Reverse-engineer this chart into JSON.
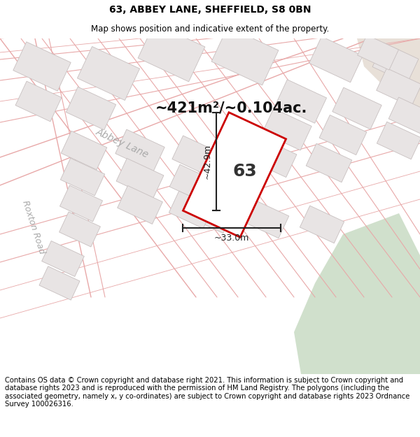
{
  "title_line1": "63, ABBEY LANE, SHEFFIELD, S8 0BN",
  "title_line2": "Map shows position and indicative extent of the property.",
  "footer_text": "Contains OS data © Crown copyright and database right 2021. This information is subject to Crown copyright and database rights 2023 and is reproduced with the permission of HM Land Registry. The polygons (including the associated geometry, namely x, y co-ordinates) are subject to Crown copyright and database rights 2023 Ordnance Survey 100026316.",
  "area_label": "~421m²/~0.104ac.",
  "number_label": "63",
  "width_label": "~33.0m",
  "height_label": "~42.9m",
  "map_bg": "#f7f5f5",
  "road_color": "#e8a8a8",
  "road_outline_color": "#ccb8b8",
  "building_fill": "#e8e4e4",
  "building_edge": "#c8c0c0",
  "green_color": "#d0e0cc",
  "beige_color": "#e8e0d8",
  "property_fill": "#ffffff",
  "property_edge": "#cc0000",
  "dim_color": "#222222",
  "road_label_color": "#aaaaaa",
  "title_fontsize": 10,
  "subtitle_fontsize": 8.5,
  "footer_fontsize": 7.2,
  "area_fontsize": 15,
  "number_fontsize": 18,
  "dim_fontsize": 9,
  "road_label_fontsize": 10
}
